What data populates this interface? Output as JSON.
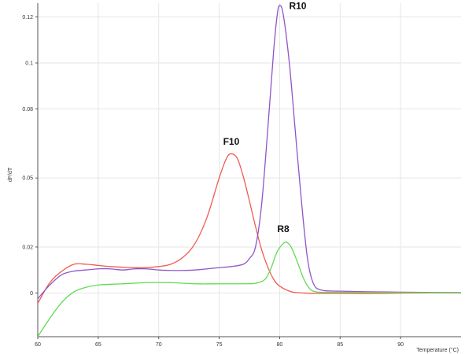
{
  "chart_data": {
    "type": "line",
    "title": "",
    "xlabel": "Temperature (°C)",
    "ylabel": "dF/dT",
    "xlim": [
      60,
      95
    ],
    "ylim": [
      -0.019,
      0.126
    ],
    "grid": true,
    "x_ticks": [
      60,
      65,
      70,
      75,
      80,
      85,
      90
    ],
    "y_ticks": [
      0,
      0.02,
      0.05,
      0.08,
      0.1,
      0.12
    ],
    "y_tick_labels": [
      "0",
      "0.02",
      "0.05",
      "0.08",
      "0.1",
      "0.12"
    ],
    "colors": {
      "grid": "#e6e6e6",
      "axis": "#555555"
    },
    "series": [
      {
        "id": "red",
        "color": "#ef5a50",
        "points": [
          [
            60.0,
            -0.0045
          ],
          [
            61.0,
            0.0045
          ],
          [
            62.0,
            0.0095
          ],
          [
            63.0,
            0.0125
          ],
          [
            64.0,
            0.0125
          ],
          [
            65.0,
            0.012
          ],
          [
            66.0,
            0.0115
          ],
          [
            67.0,
            0.0112
          ],
          [
            68.0,
            0.011
          ],
          [
            69.0,
            0.011
          ],
          [
            70.0,
            0.0115
          ],
          [
            71.0,
            0.0125
          ],
          [
            72.0,
            0.0155
          ],
          [
            73.0,
            0.0215
          ],
          [
            74.0,
            0.033
          ],
          [
            75.0,
            0.05
          ],
          [
            75.6,
            0.0585
          ],
          [
            76.0,
            0.0605
          ],
          [
            76.5,
            0.0585
          ],
          [
            77.0,
            0.0505
          ],
          [
            77.5,
            0.04
          ],
          [
            78.0,
            0.029
          ],
          [
            78.5,
            0.019
          ],
          [
            79.0,
            0.0115
          ],
          [
            79.5,
            0.006
          ],
          [
            80.0,
            0.003
          ],
          [
            81.0,
            0.0005
          ],
          [
            82.0,
            0.0
          ],
          [
            83.0,
            -0.0002
          ],
          [
            85.0,
            -0.0002
          ],
          [
            88.0,
            -0.0002
          ],
          [
            91.0,
            0.0
          ],
          [
            95.0,
            0.0
          ]
        ]
      },
      {
        "id": "purple",
        "color": "#8e55c9",
        "points": [
          [
            60.0,
            -0.0025
          ],
          [
            61.0,
            0.0035
          ],
          [
            62.0,
            0.008
          ],
          [
            63.0,
            0.0095
          ],
          [
            64.0,
            0.01
          ],
          [
            65.0,
            0.0105
          ],
          [
            66.0,
            0.0105
          ],
          [
            67.0,
            0.01
          ],
          [
            68.0,
            0.0105
          ],
          [
            69.0,
            0.0105
          ],
          [
            70.0,
            0.01
          ],
          [
            71.0,
            0.0098
          ],
          [
            72.0,
            0.0098
          ],
          [
            73.0,
            0.01
          ],
          [
            74.0,
            0.0105
          ],
          [
            75.0,
            0.011
          ],
          [
            76.0,
            0.0115
          ],
          [
            77.0,
            0.0125
          ],
          [
            77.5,
            0.015
          ],
          [
            78.0,
            0.02
          ],
          [
            78.5,
            0.038
          ],
          [
            79.0,
            0.07
          ],
          [
            79.5,
            0.105
          ],
          [
            79.8,
            0.121
          ],
          [
            80.0,
            0.125
          ],
          [
            80.3,
            0.121
          ],
          [
            80.8,
            0.1
          ],
          [
            81.3,
            0.07
          ],
          [
            81.8,
            0.04
          ],
          [
            82.3,
            0.015
          ],
          [
            82.8,
            0.004
          ],
          [
            83.5,
            0.0012
          ],
          [
            85.0,
            0.0008
          ],
          [
            88.0,
            0.0005
          ],
          [
            91.0,
            0.0003
          ],
          [
            95.0,
            0.0002
          ]
        ]
      },
      {
        "id": "green",
        "color": "#62d954",
        "points": [
          [
            60.0,
            -0.019
          ],
          [
            61.0,
            -0.011
          ],
          [
            62.0,
            -0.004
          ],
          [
            63.0,
            0.0005
          ],
          [
            64.0,
            0.0025
          ],
          [
            65.0,
            0.0035
          ],
          [
            67.0,
            0.004
          ],
          [
            69.0,
            0.0045
          ],
          [
            71.0,
            0.0045
          ],
          [
            73.0,
            0.004
          ],
          [
            75.0,
            0.004
          ],
          [
            77.0,
            0.004
          ],
          [
            78.0,
            0.0042
          ],
          [
            78.8,
            0.006
          ],
          [
            79.3,
            0.011
          ],
          [
            79.8,
            0.018
          ],
          [
            80.3,
            0.0215
          ],
          [
            80.6,
            0.022
          ],
          [
            81.0,
            0.0195
          ],
          [
            81.5,
            0.013
          ],
          [
            82.0,
            0.006
          ],
          [
            82.5,
            0.0018
          ],
          [
            83.0,
            0.0005
          ],
          [
            84.0,
            0.0003
          ],
          [
            86.0,
            0.0003
          ],
          [
            90.0,
            0.0002
          ],
          [
            95.0,
            0.0001
          ]
        ]
      }
    ],
    "annotations": [
      {
        "text": "R10",
        "x": 81.5,
        "y": 0.1235
      },
      {
        "text": "F10",
        "x": 76.0,
        "y": 0.0645
      },
      {
        "text": "R8",
        "x": 80.3,
        "y": 0.0265
      }
    ]
  }
}
